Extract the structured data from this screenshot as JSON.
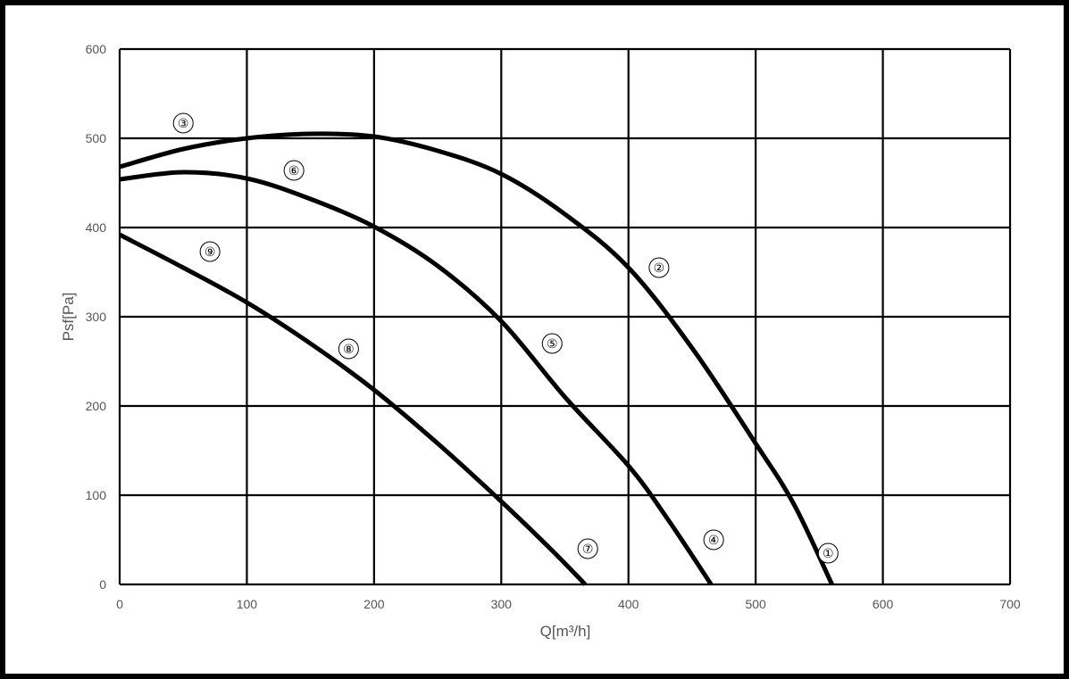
{
  "chart_data": {
    "type": "line",
    "title": "",
    "xlabel": "Q[m³/h]",
    "ylabel": "Psf[Pa]",
    "xlim": [
      0,
      700
    ],
    "ylim": [
      0,
      600
    ],
    "x_ticks": [
      0,
      100,
      200,
      300,
      400,
      500,
      600,
      700
    ],
    "y_ticks": [
      0,
      100,
      200,
      300,
      400,
      500,
      600
    ],
    "x_tick_labels": [
      "0",
      "100",
      "200",
      "300",
      "400",
      "500",
      "600",
      "700"
    ],
    "y_tick_labels": [
      "0",
      "100",
      "200",
      "300",
      "400",
      "500",
      "600"
    ],
    "grid": true,
    "line_color": "#000000",
    "series": [
      {
        "points": [
          [
            0,
            468
          ],
          [
            50,
            488
          ],
          [
            100,
            500
          ],
          [
            150,
            505
          ],
          [
            200,
            502
          ],
          [
            250,
            486
          ],
          [
            300,
            460
          ],
          [
            350,
            415
          ],
          [
            400,
            355
          ],
          [
            450,
            265
          ],
          [
            500,
            158
          ],
          [
            530,
            90
          ],
          [
            560,
            0
          ]
        ]
      },
      {
        "points": [
          [
            0,
            454
          ],
          [
            50,
            462
          ],
          [
            100,
            455
          ],
          [
            150,
            432
          ],
          [
            200,
            401
          ],
          [
            250,
            357
          ],
          [
            300,
            295
          ],
          [
            350,
            210
          ],
          [
            400,
            133
          ],
          [
            430,
            75
          ],
          [
            465,
            0
          ]
        ]
      },
      {
        "points": [
          [
            0,
            392
          ],
          [
            50,
            355
          ],
          [
            100,
            316
          ],
          [
            150,
            270
          ],
          [
            200,
            218
          ],
          [
            250,
            158
          ],
          [
            300,
            93
          ],
          [
            340,
            38
          ],
          [
            366,
            0
          ]
        ]
      }
    ],
    "annotations": [
      {
        "text": "①",
        "x": 557,
        "y": 35
      },
      {
        "text": "②",
        "x": 424,
        "y": 355
      },
      {
        "text": "③",
        "x": 50,
        "y": 517
      },
      {
        "text": "④",
        "x": 467,
        "y": 50
      },
      {
        "text": "⑤",
        "x": 340,
        "y": 270
      },
      {
        "text": "⑥",
        "x": 137,
        "y": 464
      },
      {
        "text": "⑦",
        "x": 368,
        "y": 40
      },
      {
        "text": "⑧",
        "x": 180,
        "y": 264
      },
      {
        "text": "⑨",
        "x": 71,
        "y": 373
      }
    ]
  }
}
